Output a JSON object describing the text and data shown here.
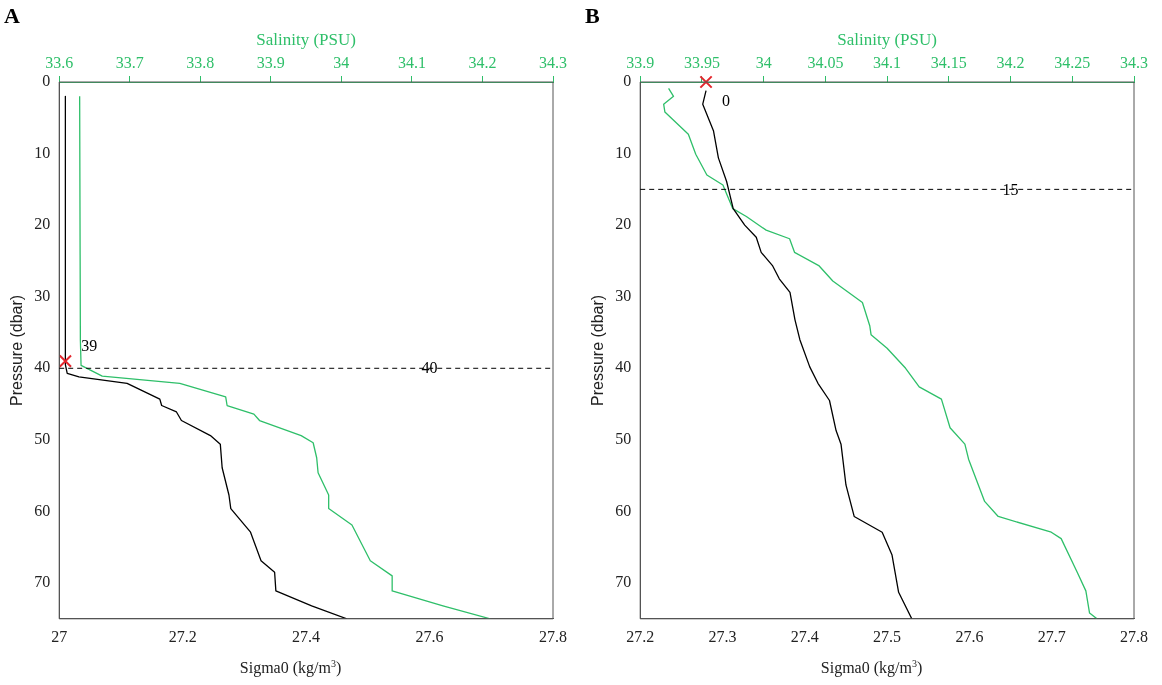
{
  "chart_data": [
    {
      "type": "line",
      "title": "A",
      "xlabel": "Sigma0 (kg/m$^{3}$)",
      "x2label": "Salinity (PSU)",
      "ylabel": "Pressure (dbar)",
      "xlim": [
        27,
        27.8
      ],
      "xticks": [
        27,
        27.2,
        27.4,
        27.6,
        27.8
      ],
      "x2lim": [
        33.6,
        34.3
      ],
      "x2ticks": [
        33.6,
        33.7,
        33.8,
        33.9,
        34,
        34.1,
        34.2,
        34.3
      ],
      "ylim": [
        75,
        0
      ],
      "yticks": [
        0,
        10,
        20,
        30,
        40,
        50,
        60,
        70
      ],
      "grid": false,
      "legend": false,
      "series": [
        {
          "type": "line",
          "color": "#000000",
          "x": [
            27.01,
            27.01,
            27.013,
            27.032,
            27.11,
            27.163,
            27.166,
            27.19,
            27.198,
            27.245,
            27.261,
            27.264,
            27.275,
            27.278,
            27.31,
            27.327,
            27.349,
            27.351,
            27.409,
            27.466
          ],
          "values": [
            2,
            39.5,
            40.7,
            41.2,
            42.1,
            44.3,
            45.2,
            46.1,
            47.3,
            49.4,
            50.6,
            53.9,
            57.7,
            59.6,
            62.9,
            66.9,
            68.5,
            71.1,
            73.2,
            75
          ]
        },
        {
          "type": "line",
          "axis": "x2",
          "color": "#2ebf69",
          "x": [
            33.629,
            33.63,
            33.631,
            33.661,
            33.771,
            33.836,
            33.838,
            33.876,
            33.884,
            33.943,
            33.96,
            33.965,
            33.967,
            33.982,
            33.982,
            34.015,
            34.041,
            34.072,
            34.072,
            34.144,
            34.211
          ],
          "values": [
            2,
            36,
            39.6,
            41.1,
            42.1,
            44,
            45.2,
            46.4,
            47.3,
            49.4,
            50.4,
            52.5,
            54.6,
            57.7,
            59.6,
            61.9,
            66.9,
            69,
            71.1,
            73.2,
            75
          ]
        },
        {
          "type": "scatter",
          "marker": "cross",
          "color": "#e3262d",
          "x": [
            27.01
          ],
          "values": [
            39
          ]
        }
      ],
      "annotations": [
        {
          "text": "39",
          "x": 27.01,
          "y": 39
        }
      ],
      "ref_lines": [
        {
          "axis": "y",
          "value": 40,
          "label": "40",
          "color": "#000000",
          "line_style": "dashed"
        }
      ]
    },
    {
      "type": "line",
      "title": "B",
      "xlabel": "Sigma0 (kg/m$^{3}$)",
      "x2label": "Salinity (PSU)",
      "ylabel": "Pressure (dbar)",
      "xlim": [
        27.2,
        27.8
      ],
      "xticks": [
        27.2,
        27.3,
        27.4,
        27.5,
        27.6,
        27.7,
        27.8
      ],
      "x2lim": [
        33.9,
        34.3
      ],
      "x2ticks": [
        33.9,
        33.95,
        34,
        34.05,
        34.1,
        34.15,
        34.2,
        34.25,
        34.3
      ],
      "ylim": [
        75,
        0
      ],
      "yticks": [
        0,
        10,
        20,
        30,
        40,
        50,
        60,
        70
      ],
      "grid": false,
      "legend": false,
      "series": [
        {
          "type": "line",
          "color": "#000000",
          "x": [
            27.28,
            27.276,
            27.289,
            27.295,
            27.305,
            27.313,
            27.327,
            27.341,
            27.347,
            27.361,
            27.369,
            27.382,
            27.388,
            27.394,
            27.406,
            27.416,
            27.43,
            27.438,
            27.444,
            27.45,
            27.46,
            27.494,
            27.506,
            27.514,
            27.53
          ],
          "values": [
            1.2,
            3.1,
            6.8,
            10.6,
            13.9,
            17.7,
            20,
            21.7,
            23.8,
            25.7,
            27.5,
            29.4,
            33.2,
            36,
            39.8,
            42.1,
            44.5,
            48.7,
            50.6,
            56.3,
            60.7,
            62.9,
            66.1,
            71.3,
            75
          ]
        },
        {
          "type": "line",
          "axis": "x2",
          "color": "#2ebf69",
          "x": [
            33.923,
            33.927,
            33.919,
            33.92,
            33.939,
            33.945,
            33.954,
            33.967,
            33.975,
            33.986,
            34.002,
            34.021,
            34.025,
            34.045,
            34.056,
            34.08,
            34.086,
            34.087,
            34.1,
            34.115,
            34.126,
            34.144,
            34.151,
            34.163,
            34.166,
            34.179,
            34.19,
            34.233,
            34.241,
            34.254,
            34.261,
            34.264,
            34.27
          ],
          "values": [
            0.9,
            2,
            3.1,
            4.2,
            7.3,
            10.1,
            13,
            14.4,
            17.7,
            18.8,
            20.7,
            21.9,
            23.8,
            25.7,
            27.8,
            30.8,
            34.1,
            35.3,
            37.2,
            40,
            42.6,
            44.3,
            48.3,
            50.6,
            52.7,
            58.6,
            60.7,
            62.9,
            63.8,
            68.5,
            71.1,
            74.2,
            75
          ]
        },
        {
          "type": "scatter",
          "marker": "cross",
          "color": "#e3262d",
          "x": [
            27.28
          ],
          "values": [
            0
          ]
        }
      ],
      "annotations": [
        {
          "text": "0",
          "x": 27.28,
          "y": 0
        }
      ],
      "ref_lines": [
        {
          "axis": "y",
          "value": 15,
          "label": "15",
          "color": "#000000",
          "line_style": "dashed"
        }
      ]
    }
  ]
}
